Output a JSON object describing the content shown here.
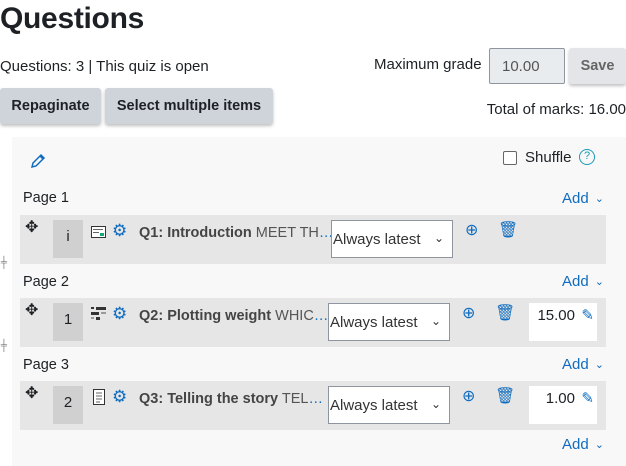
{
  "title": "Questions",
  "status": "Questions: 3 | This quiz is open",
  "max_grade": {
    "label": "Maximum grade",
    "value": "10.00",
    "save": "Save"
  },
  "buttons": {
    "repaginate": "Repaginate",
    "select_multiple": "Select multiple items"
  },
  "total_marks": "Total of marks: 16.00",
  "shuffle": {
    "label": "Shuffle",
    "checked": false
  },
  "add_label": "Add",
  "colors": {
    "accent": "#0f6cbf",
    "row_bg": "#e6e6e6",
    "panel_bg": "#f8f8f8"
  },
  "pages": [
    {
      "label": "Page 1",
      "question": {
        "number": "i",
        "type_icon": "description-icon",
        "title": "Q1: Introduction",
        "preview": "MEET TH",
        "version": "Always latest",
        "mark": null
      }
    },
    {
      "label": "Page 2",
      "question": {
        "number": "1",
        "type_icon": "ddwtos-icon",
        "title": "Q2: Plotting weight",
        "preview": "WHIC",
        "version": "Always latest",
        "mark": "15.00"
      }
    },
    {
      "label": "Page 3",
      "question": {
        "number": "2",
        "type_icon": "essay-icon",
        "title": "Q3: Telling the story",
        "preview": "TEL",
        "version": "Always latest",
        "mark": "1.00"
      }
    }
  ]
}
